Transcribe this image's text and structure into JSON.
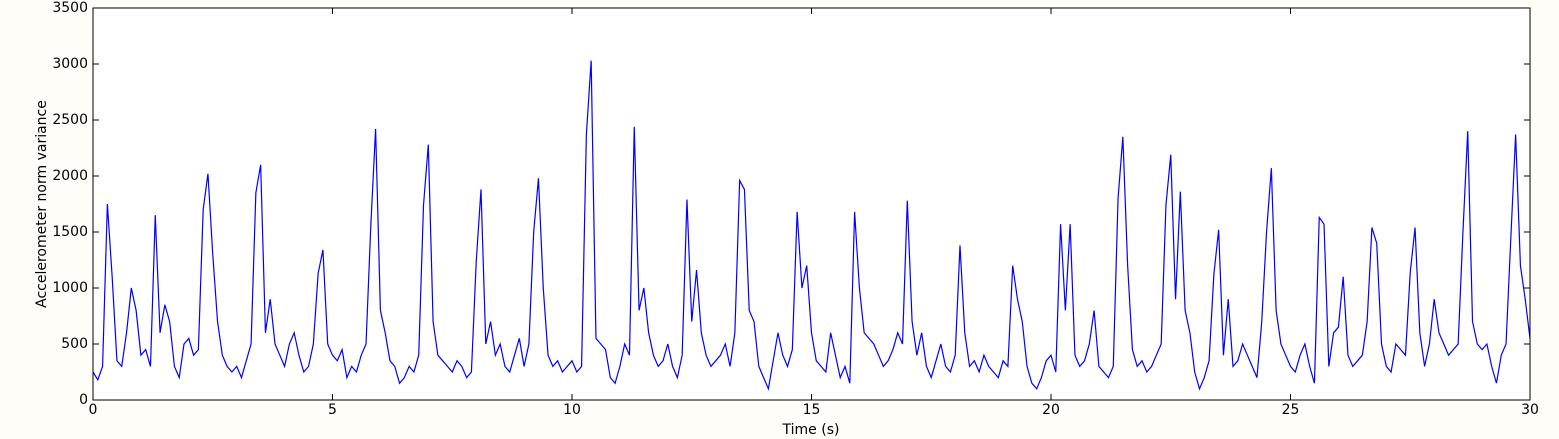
{
  "chart_data": {
    "type": "line",
    "xlabel": "Time (s)",
    "ylabel": "Accelerometer norm variance",
    "color": "#0000ff",
    "xlim": [
      0,
      30
    ],
    "xticks": [
      0,
      5,
      10,
      15,
      20,
      25,
      30
    ],
    "ylim": [
      0,
      3500
    ],
    "yticks": [
      0,
      500,
      1000,
      1500,
      2000,
      2500,
      3000,
      3500
    ],
    "x": [
      0,
      0.1,
      0.2,
      0.3,
      0.4,
      0.5,
      0.6,
      0.7,
      0.8,
      0.9,
      1,
      1.1,
      1.2,
      1.3,
      1.4,
      1.5,
      1.6,
      1.7,
      1.8,
      1.9,
      2,
      2.1,
      2.2,
      2.3,
      2.4,
      2.5,
      2.6,
      2.7,
      2.8,
      2.9,
      3,
      3.1,
      3.2,
      3.3,
      3.4,
      3.5,
      3.6,
      3.7,
      3.8,
      3.9,
      4,
      4.1,
      4.2,
      4.3,
      4.4,
      4.5,
      4.6,
      4.7,
      4.8,
      4.9,
      5,
      5.1,
      5.2,
      5.3,
      5.4,
      5.5,
      5.6,
      5.7,
      5.8,
      5.9,
      6,
      6.1,
      6.2,
      6.3,
      6.4,
      6.5,
      6.6,
      6.7,
      6.8,
      6.9,
      7,
      7.1,
      7.2,
      7.3,
      7.4,
      7.5,
      7.6,
      7.7,
      7.8,
      7.9,
      8,
      8.1,
      8.2,
      8.3,
      8.4,
      8.5,
      8.6,
      8.7,
      8.8,
      8.9,
      9,
      9.1,
      9.2,
      9.3,
      9.4,
      9.5,
      9.6,
      9.7,
      9.8,
      9.9,
      10,
      10.1,
      10.2,
      10.3,
      10.4,
      10.5,
      10.6,
      10.7,
      10.8,
      10.9,
      11,
      11.1,
      11.2,
      11.3,
      11.4,
      11.5,
      11.6,
      11.7,
      11.8,
      11.9,
      12,
      12.1,
      12.2,
      12.3,
      12.4,
      12.5,
      12.6,
      12.7,
      12.8,
      12.9,
      13,
      13.1,
      13.2,
      13.3,
      13.4,
      13.5,
      13.6,
      13.7,
      13.8,
      13.9,
      14,
      14.1,
      14.2,
      14.3,
      14.4,
      14.5,
      14.6,
      14.7,
      14.8,
      14.9,
      15,
      15.1,
      15.2,
      15.3,
      15.4,
      15.5,
      15.6,
      15.7,
      15.8,
      15.9,
      16,
      16.1,
      16.2,
      16.3,
      16.4,
      16.5,
      16.6,
      16.7,
      16.8,
      16.9,
      17,
      17.1,
      17.2,
      17.3,
      17.4,
      17.5,
      17.6,
      17.7,
      17.8,
      17.9,
      18,
      18.1,
      18.2,
      18.3,
      18.4,
      18.5,
      18.6,
      18.7,
      18.8,
      18.9,
      19,
      19.1,
      19.2,
      19.3,
      19.4,
      19.5,
      19.6,
      19.7,
      19.8,
      19.9,
      20,
      20.1,
      20.2,
      20.3,
      20.4,
      20.5,
      20.6,
      20.7,
      20.8,
      20.9,
      21,
      21.1,
      21.2,
      21.3,
      21.4,
      21.5,
      21.6,
      21.7,
      21.8,
      21.9,
      22,
      22.1,
      22.2,
      22.3,
      22.4,
      22.5,
      22.6,
      22.7,
      22.8,
      22.9,
      23,
      23.1,
      23.2,
      23.3,
      23.4,
      23.5,
      23.6,
      23.7,
      23.8,
      23.9,
      24,
      24.1,
      24.2,
      24.3,
      24.4,
      24.5,
      24.6,
      24.7,
      24.8,
      24.9,
      25,
      25.1,
      25.2,
      25.3,
      25.4,
      25.5,
      25.6,
      25.7,
      25.8,
      25.9,
      26,
      26.1,
      26.2,
      26.3,
      26.4,
      26.5,
      26.6,
      26.7,
      26.8,
      26.9,
      27,
      27.1,
      27.2,
      27.3,
      27.4,
      27.5,
      27.6,
      27.7,
      27.8,
      27.9,
      28,
      28.1,
      28.2,
      28.3,
      28.4,
      28.5,
      28.6,
      28.7,
      28.8,
      28.9,
      29,
      29.1,
      29.2,
      29.3,
      29.4,
      29.5,
      29.6,
      29.7,
      29.8,
      29.9,
      30
    ],
    "values": [
      250,
      180,
      300,
      1750,
      1100,
      350,
      300,
      600,
      1000,
      800,
      400,
      450,
      300,
      1650,
      600,
      850,
      700,
      300,
      200,
      500,
      550,
      400,
      450,
      1700,
      2020,
      1300,
      700,
      400,
      300,
      250,
      300,
      200,
      350,
      500,
      1850,
      2100,
      600,
      900,
      500,
      400,
      300,
      500,
      600,
      400,
      250,
      300,
      500,
      1130,
      1340,
      500,
      400,
      350,
      450,
      200,
      300,
      250,
      400,
      500,
      1560,
      2420,
      800,
      600,
      350,
      300,
      150,
      200,
      300,
      250,
      400,
      1740,
      2280,
      700,
      400,
      350,
      300,
      250,
      350,
      300,
      200,
      250,
      1230,
      1880,
      500,
      700,
      400,
      500,
      300,
      250,
      400,
      550,
      300,
      500,
      1500,
      1980,
      1000,
      400,
      300,
      350,
      250,
      300,
      350,
      250,
      300,
      2370,
      3030,
      550,
      500,
      450,
      200,
      150,
      300,
      500,
      400,
      2440,
      800,
      1000,
      600,
      400,
      300,
      350,
      500,
      300,
      200,
      400,
      1790,
      700,
      1160,
      600,
      400,
      300,
      350,
      400,
      500,
      300,
      600,
      1960,
      1880,
      800,
      700,
      300,
      200,
      100,
      350,
      600,
      400,
      300,
      450,
      1680,
      1000,
      1200,
      600,
      350,
      300,
      250,
      600,
      400,
      200,
      300,
      150,
      1680,
      1000,
      600,
      550,
      500,
      400,
      300,
      350,
      450,
      600,
      500,
      1780,
      700,
      400,
      600,
      300,
      200,
      350,
      500,
      300,
      250,
      400,
      1380,
      600,
      300,
      350,
      250,
      400,
      300,
      250,
      200,
      350,
      300,
      1200,
      900,
      700,
      300,
      150,
      100,
      200,
      350,
      400,
      250,
      1570,
      800,
      1570,
      400,
      300,
      350,
      500,
      800,
      300,
      250,
      200,
      300,
      1800,
      2350,
      1200,
      450,
      300,
      350,
      250,
      300,
      400,
      500,
      1740,
      2190,
      900,
      1860,
      800,
      600,
      250,
      100,
      200,
      350,
      1120,
      1520,
      400,
      900,
      300,
      350,
      500,
      400,
      300,
      200,
      700,
      1500,
      2070,
      800,
      500,
      400,
      300,
      250,
      400,
      500,
      300,
      150,
      1630,
      1570,
      300,
      600,
      650,
      1100,
      400,
      300,
      350,
      400,
      700,
      1540,
      1400,
      500,
      300,
      250,
      500,
      450,
      400,
      1140,
      1540,
      600,
      300,
      500,
      900,
      600,
      500,
      400,
      450,
      500,
      1500,
      2400,
      700,
      500,
      450,
      500,
      300,
      150,
      400,
      500,
      1450,
      2370,
      1200,
      900,
      550
    ]
  }
}
